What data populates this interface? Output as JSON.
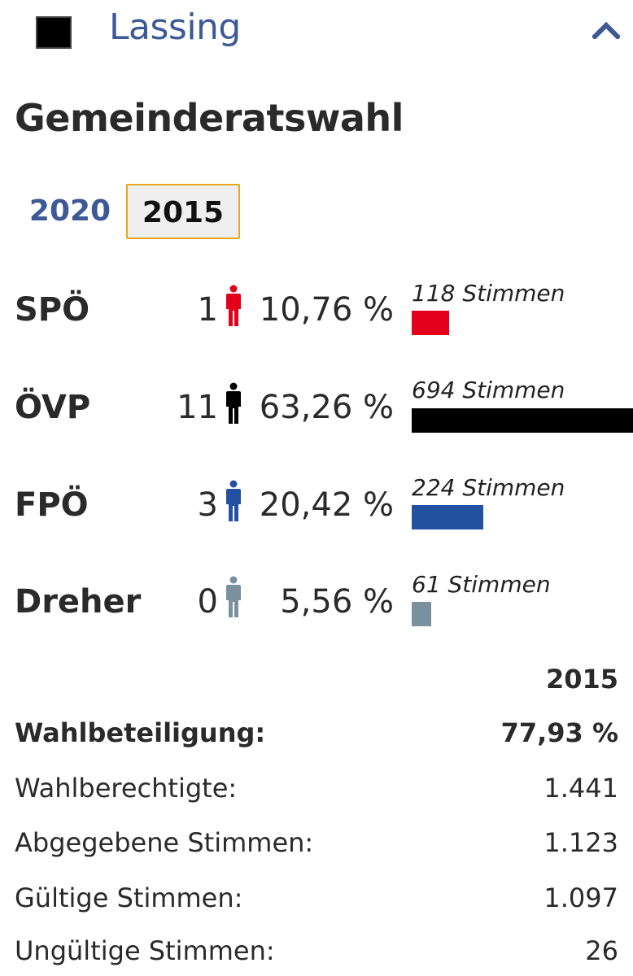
{
  "header": {
    "municipality": "Lassing",
    "square_color": "#000000",
    "collapse_icon": "chevron-up-icon"
  },
  "title": "Gemeinderatswahl",
  "tabs": [
    {
      "label": "2020",
      "active": false
    },
    {
      "label": "2015",
      "active": true
    }
  ],
  "results": [
    {
      "party": "SPÖ",
      "seats": "1",
      "percent": "10,76 %",
      "votes_label": "118 Stimmen",
      "votes": 118,
      "color": "#e2001a"
    },
    {
      "party": "ÖVP",
      "seats": "11",
      "percent": "63,26 %",
      "votes_label": "694 Stimmen",
      "votes": 694,
      "color": "#000000"
    },
    {
      "party": "FPÖ",
      "seats": "3",
      "percent": "20,42 %",
      "votes_label": "224 Stimmen",
      "votes": 224,
      "color": "#2350a0"
    },
    {
      "party": "Dreher",
      "seats": "0",
      "percent": "5,56 %",
      "votes_label": "61 Stimmen",
      "votes": 61,
      "color": "#7a909e"
    }
  ],
  "stats": {
    "year": "2015",
    "rows": [
      {
        "label": "Wahlbeteiligung:",
        "value": "77,93 %"
      },
      {
        "label": "Wahlberechtigte:",
        "value": "1.441"
      },
      {
        "label": "Abgegebene Stimmen:",
        "value": "1.123"
      },
      {
        "label": "Gültige Stimmen:",
        "value": "1.097"
      },
      {
        "label": "Ungültige Stimmen:",
        "value": "26"
      }
    ]
  }
}
